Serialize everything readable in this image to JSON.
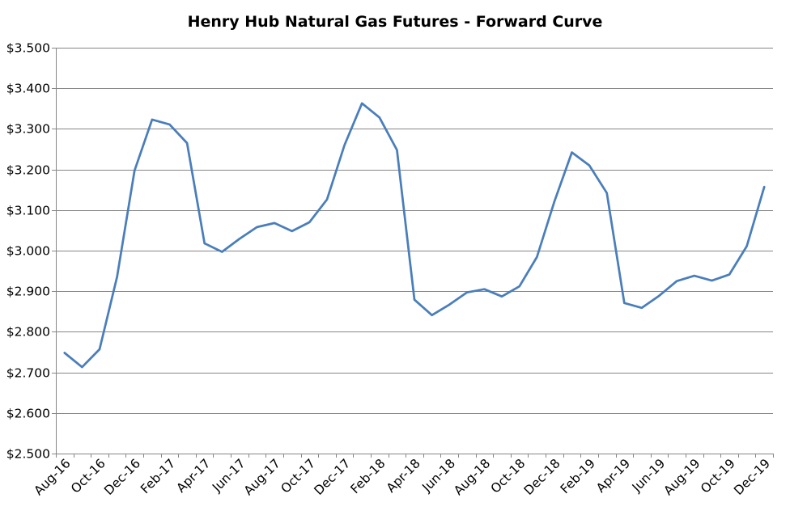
{
  "chart_data": {
    "type": "line",
    "title": "Henry Hub Natural Gas Futures - Forward Curve",
    "xlabel": "",
    "ylabel": "",
    "ylim": [
      2.5,
      3.5
    ],
    "yticks": [
      "$2.500",
      "$2.600",
      "$2.700",
      "$2.800",
      "$2.900",
      "$3.000",
      "$3.100",
      "$3.200",
      "$3.300",
      "$3.400",
      "$3.500"
    ],
    "ytick_values": [
      2.5,
      2.6,
      2.7,
      2.8,
      2.9,
      3.0,
      3.1,
      3.2,
      3.3,
      3.4,
      3.5
    ],
    "x": [
      "Aug-16",
      "Sep-16",
      "Oct-16",
      "Nov-16",
      "Dec-16",
      "Jan-17",
      "Feb-17",
      "Mar-17",
      "Apr-17",
      "May-17",
      "Jun-17",
      "Jul-17",
      "Aug-17",
      "Sep-17",
      "Oct-17",
      "Nov-17",
      "Dec-17",
      "Jan-18",
      "Feb-18",
      "Mar-18",
      "Apr-18",
      "May-18",
      "Jun-18",
      "Jul-18",
      "Aug-18",
      "Sep-18",
      "Oct-18",
      "Nov-18",
      "Dec-18",
      "Jan-19",
      "Feb-19",
      "Mar-19",
      "Apr-19",
      "May-19",
      "Jun-19",
      "Jul-19",
      "Aug-19",
      "Sep-19",
      "Oct-19",
      "Nov-19",
      "Dec-19"
    ],
    "xtick_labels": [
      "Aug-16",
      "Oct-16",
      "Dec-16",
      "Feb-17",
      "Apr-17",
      "Jun-17",
      "Aug-17",
      "Oct-17",
      "Dec-17",
      "Feb-18",
      "Apr-18",
      "Jun-18",
      "Aug-18",
      "Oct-18",
      "Dec-18",
      "Feb-19",
      "Apr-19",
      "Jun-19",
      "Aug-19",
      "Oct-19",
      "Dec-19"
    ],
    "series": [
      {
        "values": [
          2.748,
          2.713,
          2.757,
          2.935,
          3.197,
          3.323,
          3.311,
          3.265,
          3.018,
          2.997,
          3.029,
          3.058,
          3.068,
          3.048,
          3.07,
          3.126,
          3.26,
          3.363,
          3.328,
          3.248,
          2.879,
          2.841,
          2.867,
          2.897,
          2.905,
          2.887,
          2.912,
          2.984,
          3.121,
          3.242,
          3.21,
          3.142,
          2.871,
          2.859,
          2.889,
          2.925,
          2.938,
          2.926,
          2.941,
          3.011,
          3.157
        ]
      }
    ],
    "grid": true,
    "legend": "none",
    "line_color": "#4a7ebb",
    "grid_color": "#868686"
  }
}
